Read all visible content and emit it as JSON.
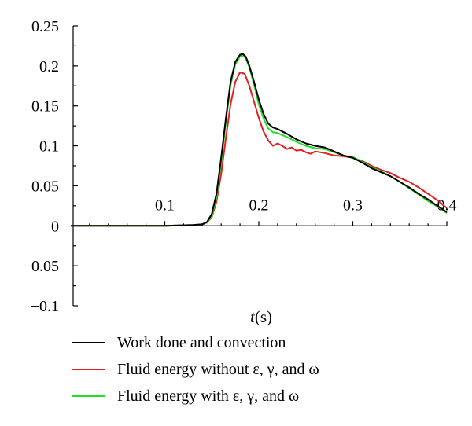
{
  "chart_data": {
    "type": "line",
    "xlabel": "(s)",
    "xlabel_symbol": "t",
    "ylabel": "",
    "xlim": [
      0,
      0.4
    ],
    "ylim": [
      -0.1,
      0.25
    ],
    "x_ticks": [
      {
        "value": 0.1,
        "label": "0.1"
      },
      {
        "value": 0.2,
        "label": "0.2"
      },
      {
        "value": 0.3,
        "label": "0.3"
      },
      {
        "value": 0.4,
        "label": "0.4"
      }
    ],
    "y_ticks": [
      {
        "value": 0.25,
        "label": "0.25"
      },
      {
        "value": 0.2,
        "label": "0.2"
      },
      {
        "value": 0.15,
        "label": "0.15"
      },
      {
        "value": 0.1,
        "label": "0.1"
      },
      {
        "value": 0.05,
        "label": "0.05"
      },
      {
        "value": 0,
        "label": "0"
      },
      {
        "value": -0.05,
        "label": "−0.05"
      },
      {
        "value": -0.1,
        "label": "−0.1"
      }
    ],
    "grid": false,
    "legend_placement": "bottom",
    "series": [
      {
        "name": "Work done and convection",
        "color": "#000000",
        "x": [
          0,
          0.1,
          0.13,
          0.14,
          0.145,
          0.15,
          0.155,
          0.16,
          0.165,
          0.17,
          0.175,
          0.18,
          0.183,
          0.186,
          0.19,
          0.195,
          0.2,
          0.205,
          0.21,
          0.215,
          0.22,
          0.23,
          0.24,
          0.25,
          0.26,
          0.27,
          0.28,
          0.29,
          0.3,
          0.31,
          0.32,
          0.33,
          0.34,
          0.35,
          0.36,
          0.37,
          0.38,
          0.39,
          0.4
        ],
        "y": [
          0,
          0,
          0.001,
          0.002,
          0.005,
          0.015,
          0.04,
          0.085,
          0.135,
          0.18,
          0.205,
          0.214,
          0.215,
          0.212,
          0.2,
          0.18,
          0.158,
          0.14,
          0.128,
          0.123,
          0.121,
          0.115,
          0.108,
          0.103,
          0.1,
          0.098,
          0.093,
          0.088,
          0.085,
          0.079,
          0.072,
          0.067,
          0.062,
          0.055,
          0.048,
          0.04,
          0.033,
          0.025,
          0.017
        ]
      },
      {
        "name": "Fluid energy without ε, γ, and ω",
        "color": "#e02020",
        "x": [
          0,
          0.1,
          0.13,
          0.14,
          0.145,
          0.15,
          0.155,
          0.16,
          0.165,
          0.17,
          0.175,
          0.18,
          0.185,
          0.19,
          0.195,
          0.2,
          0.205,
          0.21,
          0.215,
          0.22,
          0.225,
          0.23,
          0.235,
          0.24,
          0.245,
          0.25,
          0.255,
          0.26,
          0.27,
          0.28,
          0.29,
          0.3,
          0.31,
          0.32,
          0.33,
          0.34,
          0.35,
          0.36,
          0.37,
          0.38,
          0.39,
          0.4
        ],
        "y": [
          0,
          0,
          0.001,
          0.002,
          0.004,
          0.011,
          0.03,
          0.065,
          0.11,
          0.152,
          0.18,
          0.192,
          0.19,
          0.175,
          0.155,
          0.135,
          0.118,
          0.107,
          0.1,
          0.103,
          0.1,
          0.096,
          0.098,
          0.094,
          0.095,
          0.092,
          0.09,
          0.093,
          0.091,
          0.088,
          0.087,
          0.085,
          0.081,
          0.075,
          0.07,
          0.066,
          0.06,
          0.055,
          0.048,
          0.04,
          0.032,
          0.022
        ]
      },
      {
        "name": "Fluid energy with ε, γ, and ω",
        "color": "#22dd22",
        "x": [
          0,
          0.1,
          0.13,
          0.14,
          0.145,
          0.15,
          0.155,
          0.16,
          0.165,
          0.17,
          0.175,
          0.18,
          0.183,
          0.186,
          0.19,
          0.195,
          0.2,
          0.205,
          0.21,
          0.215,
          0.22,
          0.23,
          0.24,
          0.25,
          0.26,
          0.27,
          0.28,
          0.29,
          0.3,
          0.31,
          0.32,
          0.33,
          0.34,
          0.35,
          0.36,
          0.37,
          0.38,
          0.39,
          0.4
        ],
        "y": [
          0,
          0,
          0.001,
          0.002,
          0.004,
          0.012,
          0.035,
          0.08,
          0.13,
          0.176,
          0.202,
          0.212,
          0.213,
          0.21,
          0.198,
          0.176,
          0.152,
          0.134,
          0.122,
          0.117,
          0.116,
          0.111,
          0.105,
          0.1,
          0.097,
          0.096,
          0.092,
          0.088,
          0.086,
          0.08,
          0.073,
          0.068,
          0.062,
          0.055,
          0.047,
          0.039,
          0.031,
          0.024,
          0.016
        ]
      }
    ]
  }
}
